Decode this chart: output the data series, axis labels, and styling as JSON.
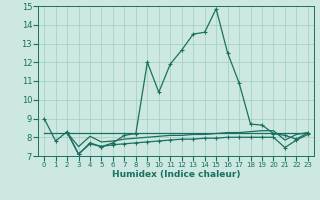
{
  "xlabel": "Humidex (Indice chaleur)",
  "ylabel": "",
  "xlim": [
    -0.5,
    23.5
  ],
  "ylim": [
    7,
    15
  ],
  "yticks": [
    7,
    8,
    9,
    10,
    11,
    12,
    13,
    14,
    15
  ],
  "xtick_labels": [
    "0",
    "1",
    "2",
    "3",
    "4",
    "5",
    "6",
    "7",
    "8",
    "9",
    "10",
    "11",
    "12",
    "13",
    "14",
    "15",
    "16",
    "17",
    "18",
    "19",
    "20",
    "21",
    "22",
    "23"
  ],
  "background_color": "#cce8e0",
  "grid_color": "#9ecfbf",
  "line_color": "#1a7060",
  "lines": [
    {
      "x": [
        0,
        1,
        2,
        3,
        4,
        5,
        6,
        7,
        8,
        9,
        10,
        11,
        12,
        13,
        14,
        15,
        16,
        17,
        18,
        19,
        20,
        21,
        22,
        23
      ],
      "y": [
        9.0,
        7.8,
        8.3,
        7.1,
        7.7,
        7.5,
        7.7,
        8.1,
        8.2,
        12.0,
        10.4,
        11.9,
        12.65,
        13.5,
        13.6,
        14.85,
        12.5,
        10.9,
        8.7,
        8.65,
        8.2,
        8.1,
        7.9,
        8.25
      ],
      "marker": true
    },
    {
      "x": [
        0,
        1,
        2,
        3,
        4,
        5,
        6,
        7,
        8,
        9,
        10,
        11,
        12,
        13,
        14,
        15,
        16,
        17,
        18,
        19,
        20,
        21,
        22,
        23
      ],
      "y": [
        8.25,
        8.25,
        8.25,
        8.25,
        8.25,
        8.25,
        8.25,
        8.25,
        8.25,
        8.25,
        8.25,
        8.25,
        8.25,
        8.25,
        8.25,
        8.25,
        8.25,
        8.25,
        8.25,
        8.25,
        8.25,
        8.25,
        8.25,
        8.25
      ],
      "marker": false
    },
    {
      "x": [
        2,
        3,
        4,
        5,
        6,
        7,
        8,
        9,
        10,
        11,
        12,
        13,
        14,
        15,
        16,
        17,
        18,
        19,
        20,
        21,
        22,
        23
      ],
      "y": [
        8.25,
        7.1,
        7.65,
        7.5,
        7.6,
        7.65,
        7.7,
        7.75,
        7.8,
        7.85,
        7.9,
        7.9,
        7.95,
        7.95,
        8.0,
        8.0,
        8.0,
        8.0,
        8.0,
        7.45,
        7.85,
        8.15
      ],
      "marker": true
    },
    {
      "x": [
        2,
        3,
        4,
        5,
        6,
        7,
        8,
        9,
        10,
        11,
        12,
        13,
        14,
        15,
        16,
        17,
        18,
        19,
        20,
        21,
        22,
        23
      ],
      "y": [
        8.25,
        7.5,
        8.05,
        7.75,
        7.8,
        7.9,
        7.95,
        8.0,
        8.05,
        8.1,
        8.1,
        8.15,
        8.15,
        8.2,
        8.25,
        8.25,
        8.3,
        8.35,
        8.35,
        7.85,
        8.15,
        8.25
      ],
      "marker": false
    }
  ],
  "markersize": 3,
  "linewidth": 0.9
}
